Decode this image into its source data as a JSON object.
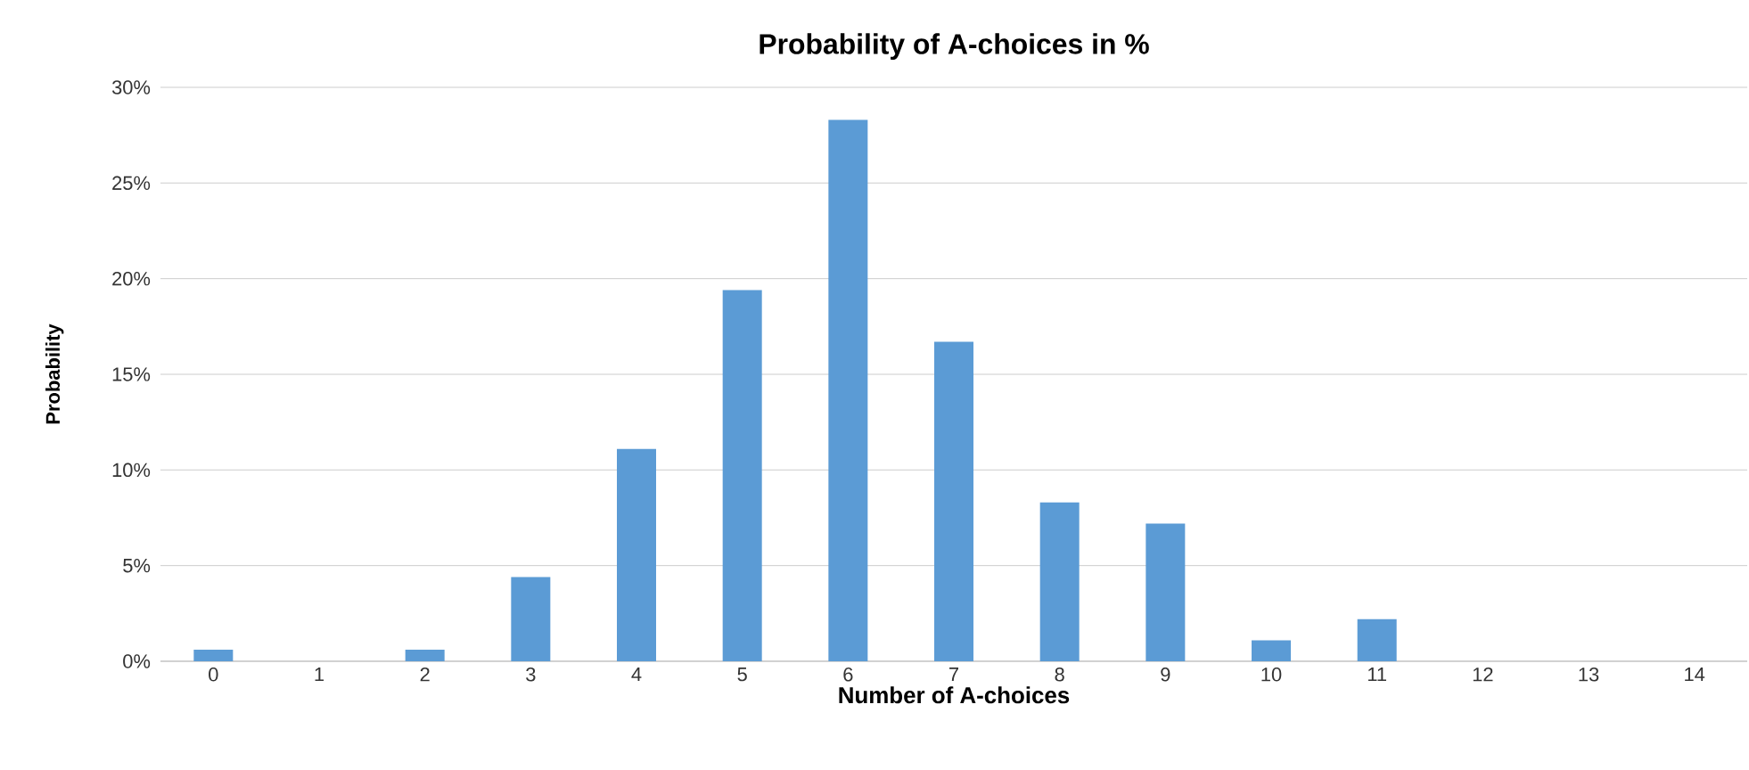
{
  "chart_data": {
    "type": "bar",
    "title": "Probability of A-choices in %",
    "xlabel": "Number of A-choices",
    "ylabel": "Probability",
    "categories": [
      "0",
      "1",
      "2",
      "3",
      "4",
      "5",
      "6",
      "7",
      "8",
      "9",
      "10",
      "11",
      "12",
      "13",
      "14"
    ],
    "values": [
      0.6,
      0,
      0.6,
      4.4,
      11.1,
      19.4,
      28.3,
      16.7,
      8.3,
      7.2,
      1.1,
      2.2,
      0,
      0,
      0
    ],
    "color": "#5b9bd5",
    "ylim": [
      0,
      30
    ],
    "yticks": [
      {
        "value": 0,
        "label": "0%"
      },
      {
        "value": 5,
        "label": "5%"
      },
      {
        "value": 10,
        "label": "10%"
      },
      {
        "value": 15,
        "label": "15%"
      },
      {
        "value": 20,
        "label": "20%"
      },
      {
        "value": 25,
        "label": "25%"
      },
      {
        "value": 30,
        "label": "30%"
      }
    ],
    "grid": "y"
  }
}
